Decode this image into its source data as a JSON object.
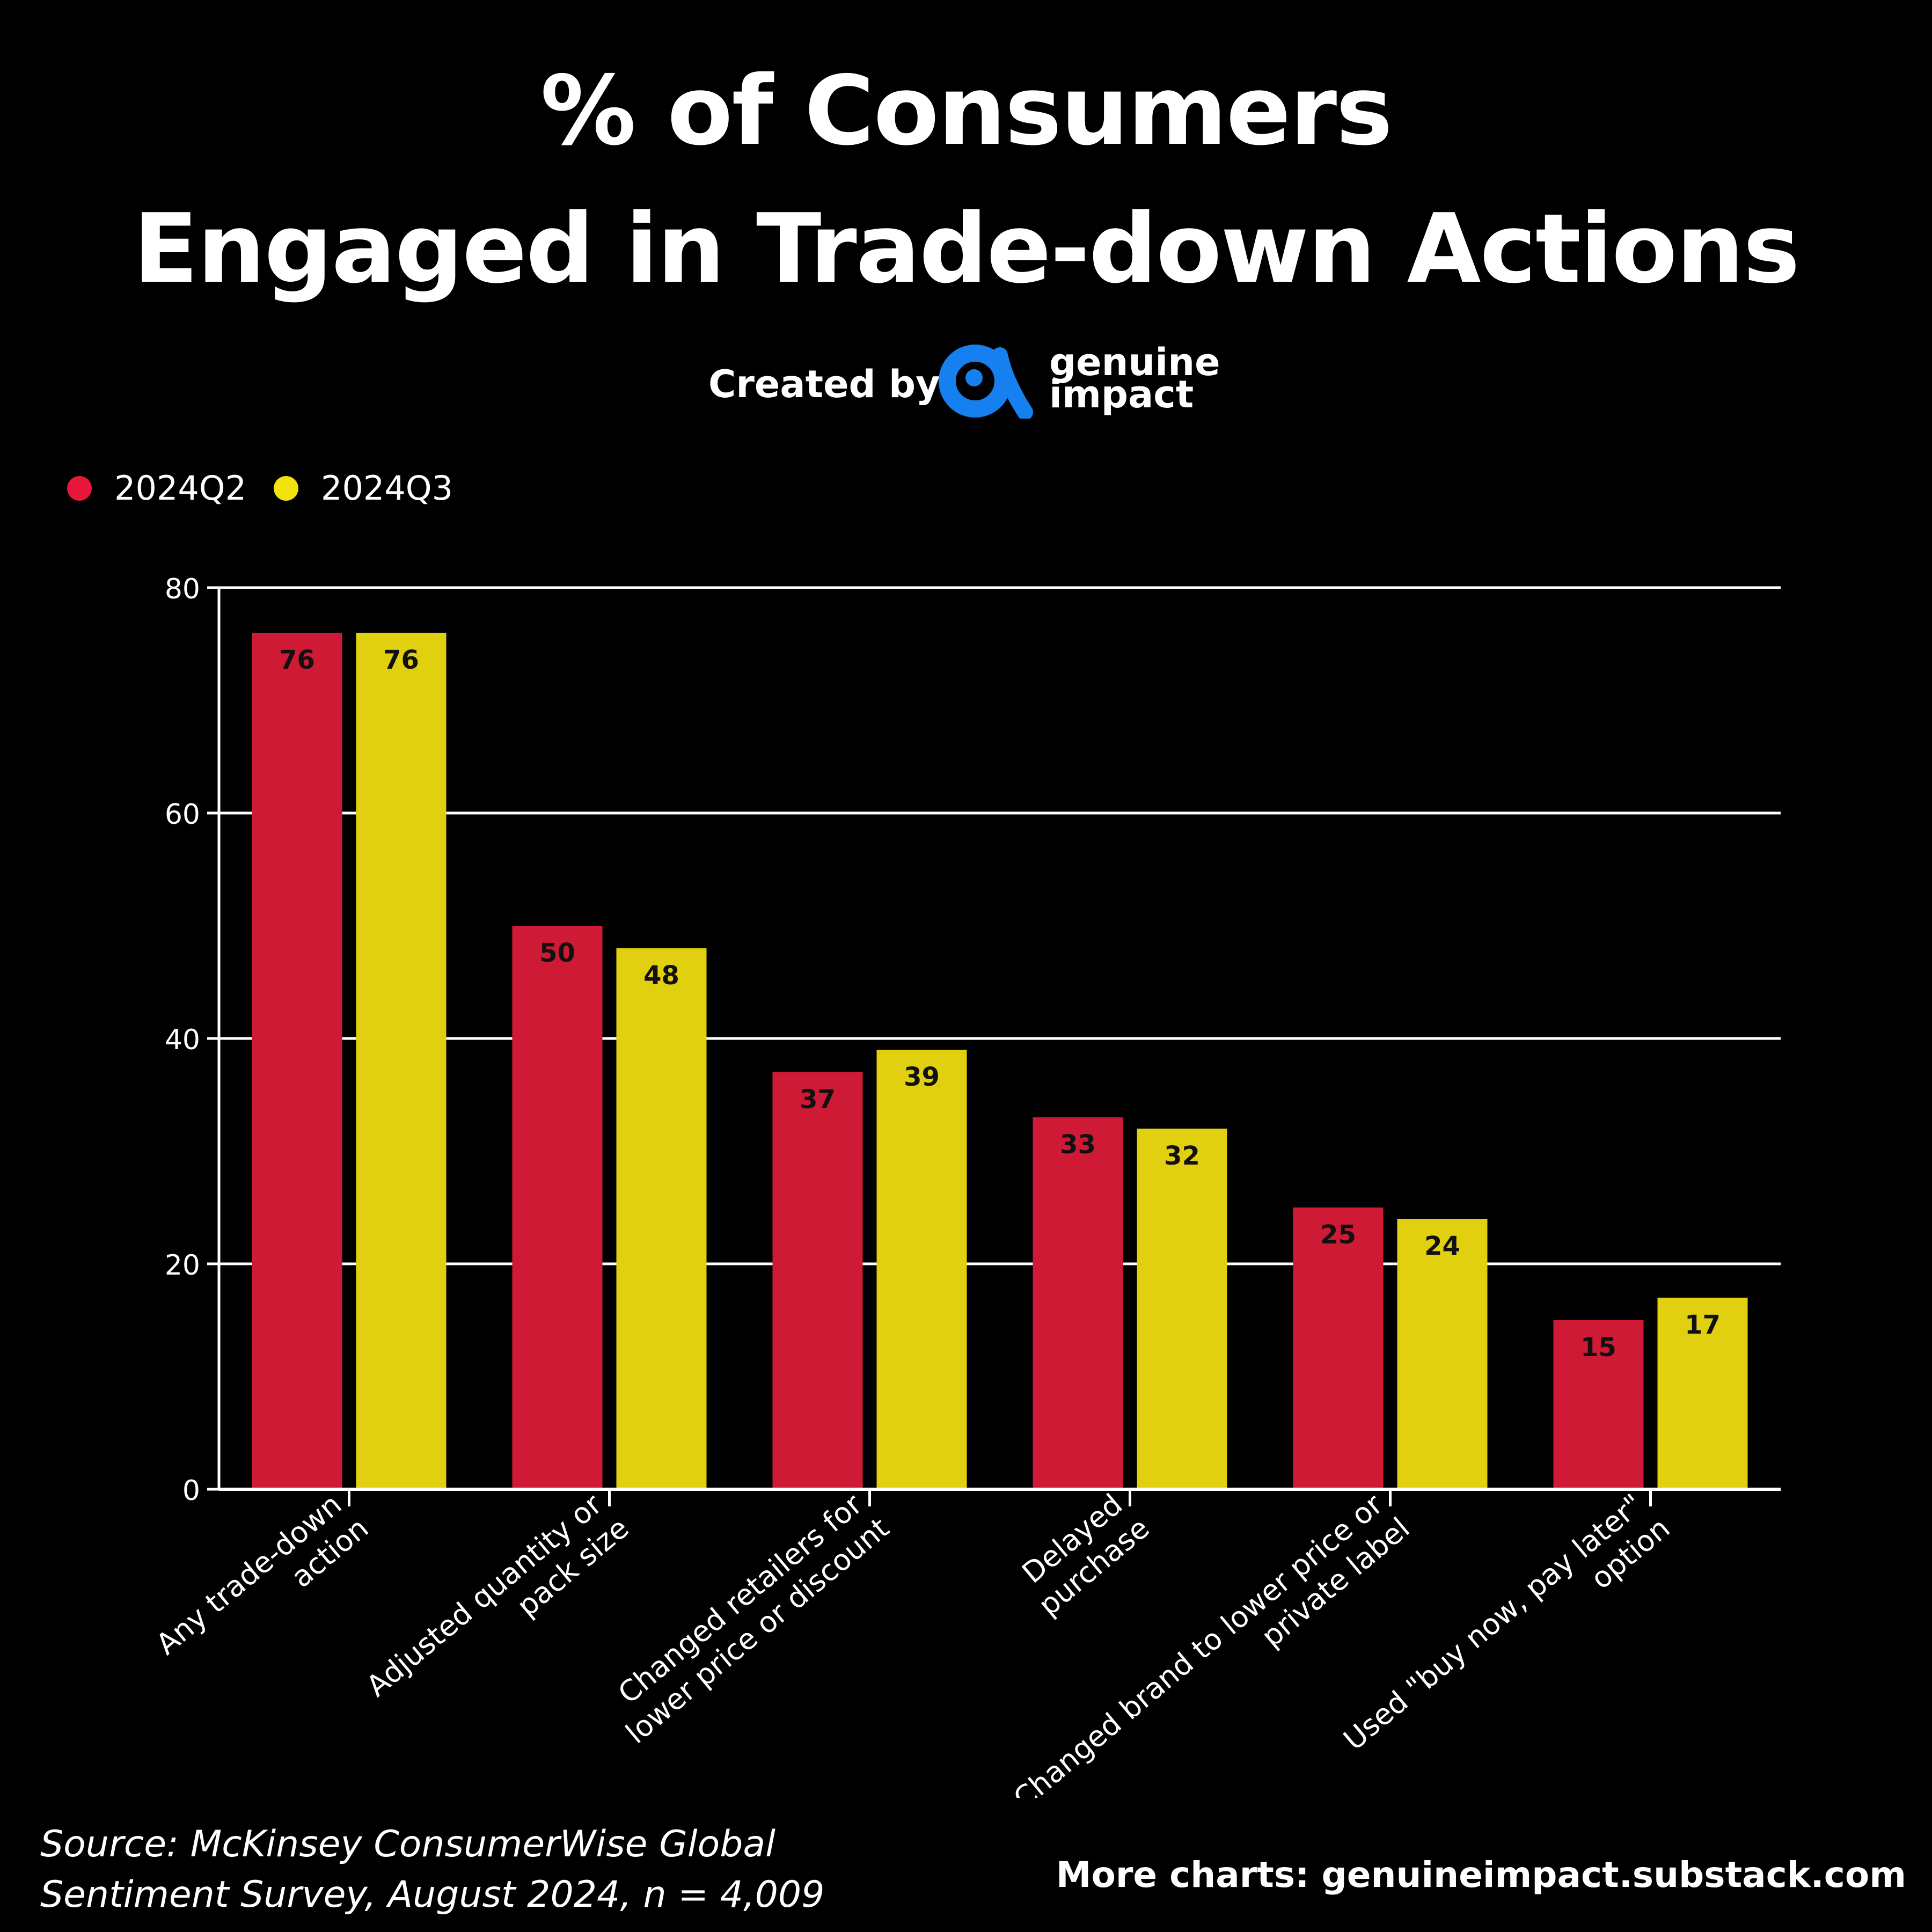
{
  "title": {
    "line1": "% of Consumers",
    "line2": "Engaged in Trade-down Actions"
  },
  "credit": {
    "created_by": "Created by",
    "brand_line1": "genuine",
    "brand_line2": "impact",
    "brand_color": "#1780f0"
  },
  "colors": {
    "q2": "#cf1a35",
    "q3": "#e0d010",
    "legend_q2": "#e8173a",
    "legend_q3": "#f2e20e",
    "background": "#000000",
    "axis": "#ffffff"
  },
  "chart_data": {
    "type": "bar",
    "categories": [
      "Any trade-down action",
      "Adjusted quantity or pack size",
      "Changed retailers for lower price or discount",
      "Delayed purchase",
      "Changed brand to lower price or private label",
      "Used \"buy now, pay later\" option"
    ],
    "category_lines": [
      [
        "Any trade-down",
        "action"
      ],
      [
        "Adjusted quantity or",
        "pack size"
      ],
      [
        "Changed retailers for",
        "lower price or discount"
      ],
      [
        "Delayed",
        "purchase"
      ],
      [
        "Changed brand to lower price or",
        "private label"
      ],
      [
        "Used \"buy now, pay later\"",
        "option"
      ]
    ],
    "series": [
      {
        "name": "2024Q2",
        "values": [
          76,
          50,
          37,
          33,
          25,
          15
        ]
      },
      {
        "name": "2024Q3",
        "values": [
          76,
          48,
          39,
          32,
          24,
          17
        ]
      }
    ],
    "ylim": [
      0,
      80
    ],
    "yticks": [
      0,
      20,
      40,
      60,
      80
    ],
    "grid": true,
    "legend_position": "top-left"
  },
  "footer": {
    "source_line1": "Source: McKinsey ConsumerWise Global",
    "source_line2": "Sentiment Survey, August 2024, n = 4,009",
    "more_charts": "More charts: genuineimpact.substack.com"
  }
}
